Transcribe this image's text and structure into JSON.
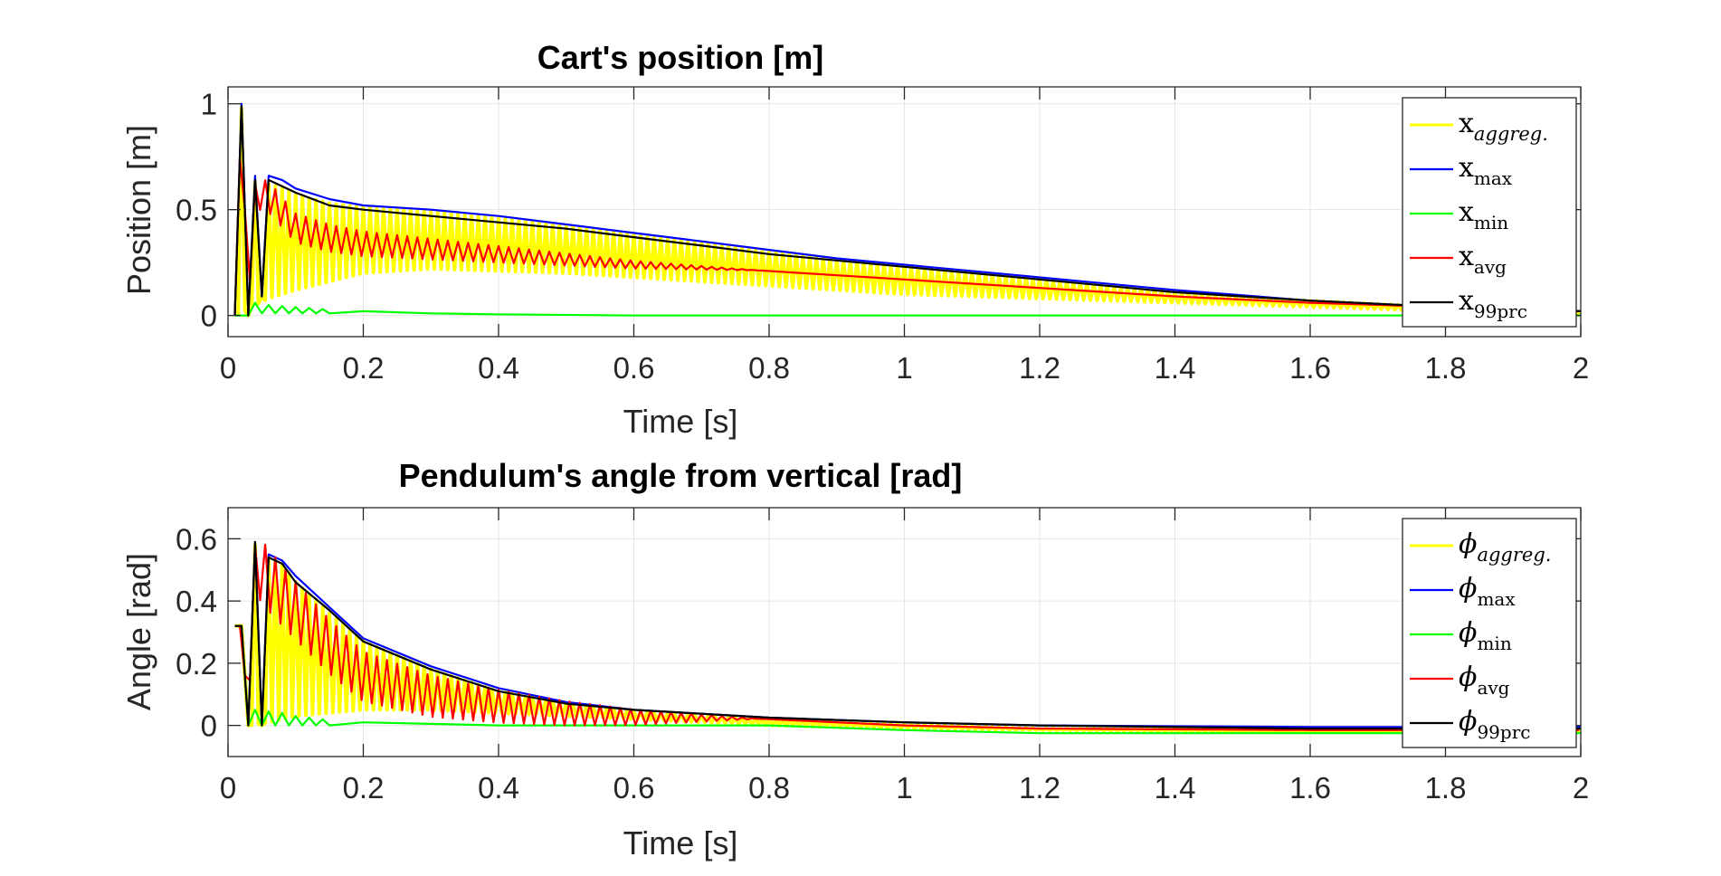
{
  "chart_data": [
    {
      "type": "line",
      "title": "Cart's position [m]",
      "xlabel": "Time [s]",
      "ylabel": "Position [m]",
      "xlim": [
        0,
        2
      ],
      "ylim": [
        -0.1,
        1.08
      ],
      "xticks": [
        0,
        0.2,
        0.4,
        0.6,
        0.8,
        1,
        1.2,
        1.4,
        1.6,
        1.8,
        2
      ],
      "xtick_labels": [
        "0",
        "0.2",
        "0.4",
        "0.6",
        "0.8",
        "1",
        "1.2",
        "1.4",
        "1.6",
        "1.8",
        "2"
      ],
      "yticks": [
        0,
        0.5,
        1
      ],
      "ytick_labels": [
        "0",
        "0.5",
        "1"
      ],
      "grid": true,
      "legend_position": "top-right",
      "series": [
        {
          "name": "x_aggreg.",
          "legend_base": "x",
          "legend_sub": "aggreg.",
          "sub_italic": true,
          "color": "#ffff00",
          "style": "band",
          "upper_x": [
            0.01,
            0.02,
            0.03,
            0.04,
            0.05,
            0.06,
            0.08,
            0.1,
            0.15,
            0.2,
            0.3,
            0.4,
            0.5,
            0.6,
            0.7,
            0.8,
            0.9,
            1.0,
            1.2,
            1.4,
            1.6,
            1.8,
            2.0
          ],
          "upper_y": [
            0.0,
            0.98,
            0.0,
            0.63,
            0.09,
            0.62,
            0.6,
            0.57,
            0.53,
            0.51,
            0.49,
            0.46,
            0.42,
            0.38,
            0.34,
            0.3,
            0.26,
            0.23,
            0.17,
            0.11,
            0.07,
            0.04,
            0.02
          ],
          "lower_x": [
            0.01,
            0.06,
            0.08,
            0.1,
            0.15,
            0.2,
            0.3,
            0.4,
            0.5,
            0.6,
            0.7,
            0.8,
            0.9,
            1.0,
            1.2,
            1.4,
            1.6,
            1.8,
            2.0
          ],
          "lower_y": [
            0.0,
            0.08,
            0.1,
            0.12,
            0.16,
            0.2,
            0.22,
            0.21,
            0.2,
            0.18,
            0.16,
            0.14,
            0.12,
            0.1,
            0.08,
            0.06,
            0.04,
            0.02,
            0.01
          ]
        },
        {
          "name": "x_max",
          "legend_base": "x",
          "legend_sub": "max",
          "sub_italic": false,
          "color": "#0000ff",
          "x": [
            0.01,
            0.02,
            0.03,
            0.04,
            0.05,
            0.06,
            0.08,
            0.1,
            0.15,
            0.2,
            0.3,
            0.4,
            0.5,
            0.6,
            0.7,
            0.8,
            0.9,
            1.0,
            1.2,
            1.4,
            1.6,
            1.8,
            2.0
          ],
          "y": [
            0.0,
            1.0,
            0.0,
            0.66,
            0.09,
            0.66,
            0.64,
            0.6,
            0.55,
            0.52,
            0.5,
            0.47,
            0.43,
            0.39,
            0.35,
            0.31,
            0.27,
            0.24,
            0.18,
            0.12,
            0.07,
            0.04,
            0.02
          ]
        },
        {
          "name": "x_min",
          "legend_base": "x",
          "legend_sub": "min",
          "sub_italic": false,
          "color": "#00ff00",
          "x": [
            0.01,
            0.02,
            0.03,
            0.04,
            0.05,
            0.06,
            0.07,
            0.08,
            0.09,
            0.1,
            0.11,
            0.12,
            0.13,
            0.14,
            0.15,
            0.2,
            0.3,
            0.4,
            0.6,
            0.8,
            1.0,
            1.4,
            1.8,
            2.0
          ],
          "y": [
            0.0,
            0.0,
            0.0,
            0.06,
            0.01,
            0.05,
            0.01,
            0.045,
            0.01,
            0.04,
            0.01,
            0.035,
            0.01,
            0.03,
            0.01,
            0.02,
            0.01,
            0.005,
            0.0,
            0.0,
            0.0,
            0.0,
            0.0,
            0.0
          ]
        },
        {
          "name": "x_avg",
          "legend_base": "x",
          "legend_sub": "avg",
          "sub_italic": false,
          "color": "#ff0000",
          "oscillate": true,
          "x": [
            0.01,
            0.02,
            0.03,
            0.04,
            0.06,
            0.1,
            0.15,
            0.2,
            0.3,
            0.4,
            0.5,
            0.6,
            0.7,
            0.8,
            0.9,
            1.0,
            1.2,
            1.4,
            1.6,
            1.8,
            2.0
          ],
          "y": [
            0.0,
            0.99,
            0.0,
            0.62,
            0.6,
            0.45,
            0.4,
            0.37,
            0.34,
            0.31,
            0.28,
            0.25,
            0.23,
            0.21,
            0.19,
            0.17,
            0.13,
            0.09,
            0.06,
            0.04,
            0.02
          ]
        },
        {
          "name": "x_99prc",
          "legend_base": "x",
          "legend_sub": "99prc",
          "sub_italic": false,
          "color": "#000000",
          "x": [
            0.01,
            0.02,
            0.03,
            0.04,
            0.05,
            0.06,
            0.08,
            0.1,
            0.15,
            0.2,
            0.3,
            0.4,
            0.5,
            0.6,
            0.7,
            0.8,
            0.9,
            1.0,
            1.2,
            1.4,
            1.6,
            1.8,
            2.0
          ],
          "y": [
            0.0,
            0.99,
            0.0,
            0.64,
            0.09,
            0.64,
            0.61,
            0.58,
            0.52,
            0.5,
            0.47,
            0.44,
            0.41,
            0.37,
            0.33,
            0.29,
            0.26,
            0.23,
            0.17,
            0.11,
            0.07,
            0.04,
            0.02
          ]
        }
      ]
    },
    {
      "type": "line",
      "title": "Pendulum's angle from vertical [rad]",
      "xlabel": "Time [s]",
      "ylabel": "Angle [rad]",
      "xlim": [
        0,
        2
      ],
      "ylim": [
        -0.1,
        0.7
      ],
      "xticks": [
        0,
        0.2,
        0.4,
        0.6,
        0.8,
        1,
        1.2,
        1.4,
        1.6,
        1.8,
        2
      ],
      "xtick_labels": [
        "0",
        "0.2",
        "0.4",
        "0.6",
        "0.8",
        "1",
        "1.2",
        "1.4",
        "1.6",
        "1.8",
        "2"
      ],
      "yticks": [
        0,
        0.2,
        0.4,
        0.6
      ],
      "ytick_labels": [
        "0",
        "0.2",
        "0.4",
        "0.6"
      ],
      "grid": true,
      "legend_position": "top-right",
      "series": [
        {
          "name": "phi_aggreg.",
          "legend_base": "ϕ",
          "legend_sub": "aggreg.",
          "sub_italic": true,
          "color": "#ffff00",
          "style": "band",
          "upper_x": [
            0.01,
            0.02,
            0.03,
            0.04,
            0.05,
            0.06,
            0.08,
            0.1,
            0.15,
            0.2,
            0.3,
            0.4,
            0.5,
            0.6,
            0.8,
            1.0,
            1.2,
            1.6,
            2.0
          ],
          "upper_y": [
            0.32,
            0.32,
            0.0,
            0.58,
            0.0,
            0.54,
            0.52,
            0.46,
            0.36,
            0.27,
            0.18,
            0.11,
            0.07,
            0.045,
            0.02,
            0.005,
            -0.01,
            -0.015,
            -0.015
          ],
          "lower_x": [
            0.01,
            0.02,
            0.03,
            0.06,
            0.1,
            0.15,
            0.2,
            0.3,
            0.4,
            0.5,
            0.6,
            0.8,
            1.0,
            1.2,
            1.6,
            2.0
          ],
          "lower_y": [
            0.32,
            0.32,
            0.0,
            0.01,
            0.03,
            0.04,
            0.05,
            0.05,
            0.04,
            0.03,
            0.02,
            0.0,
            -0.01,
            -0.015,
            -0.02,
            -0.02
          ]
        },
        {
          "name": "phi_max",
          "legend_base": "ϕ",
          "legend_sub": "max",
          "sub_italic": false,
          "color": "#0000ff",
          "x": [
            0.01,
            0.02,
            0.03,
            0.04,
            0.05,
            0.06,
            0.08,
            0.1,
            0.15,
            0.2,
            0.3,
            0.4,
            0.5,
            0.6,
            0.8,
            1.0,
            1.2,
            1.6,
            2.0
          ],
          "y": [
            0.32,
            0.32,
            0.0,
            0.59,
            0.0,
            0.55,
            0.53,
            0.48,
            0.38,
            0.28,
            0.19,
            0.12,
            0.075,
            0.05,
            0.025,
            0.01,
            0.0,
            -0.005,
            -0.005
          ]
        },
        {
          "name": "phi_min",
          "legend_base": "ϕ",
          "legend_sub": "min",
          "sub_italic": false,
          "color": "#00ff00",
          "x": [
            0.01,
            0.02,
            0.03,
            0.04,
            0.05,
            0.06,
            0.07,
            0.08,
            0.09,
            0.1,
            0.11,
            0.12,
            0.13,
            0.14,
            0.15,
            0.2,
            0.3,
            0.4,
            0.6,
            0.8,
            1.0,
            1.2,
            1.6,
            2.0
          ],
          "y": [
            0.32,
            0.32,
            0.0,
            0.05,
            0.0,
            0.045,
            0.0,
            0.04,
            0.0,
            0.03,
            0.0,
            0.025,
            0.0,
            0.02,
            0.0,
            0.01,
            0.005,
            0.0,
            0.0,
            0.0,
            -0.015,
            -0.025,
            -0.025,
            -0.025
          ]
        },
        {
          "name": "phi_avg",
          "legend_base": "ϕ",
          "legend_sub": "avg",
          "sub_italic": false,
          "color": "#ff0000",
          "oscillate": true,
          "x": [
            0.01,
            0.02,
            0.03,
            0.04,
            0.06,
            0.1,
            0.15,
            0.2,
            0.3,
            0.4,
            0.5,
            0.6,
            0.8,
            1.0,
            1.2,
            1.6,
            2.0
          ],
          "y": [
            0.32,
            0.32,
            0.0,
            0.58,
            0.52,
            0.42,
            0.3,
            0.2,
            0.13,
            0.09,
            0.06,
            0.04,
            0.02,
            0.0,
            -0.01,
            -0.015,
            -0.015
          ]
        },
        {
          "name": "phi_99prc",
          "legend_base": "ϕ",
          "legend_sub": "99prc",
          "sub_italic": false,
          "color": "#000000",
          "x": [
            0.01,
            0.02,
            0.03,
            0.04,
            0.05,
            0.06,
            0.08,
            0.1,
            0.15,
            0.2,
            0.3,
            0.4,
            0.5,
            0.6,
            0.8,
            1.0,
            1.2,
            1.6,
            2.0
          ],
          "y": [
            0.32,
            0.32,
            0.0,
            0.59,
            0.0,
            0.54,
            0.52,
            0.46,
            0.37,
            0.27,
            0.18,
            0.11,
            0.07,
            0.05,
            0.025,
            0.01,
            0.0,
            -0.01,
            -0.01
          ]
        }
      ]
    }
  ]
}
